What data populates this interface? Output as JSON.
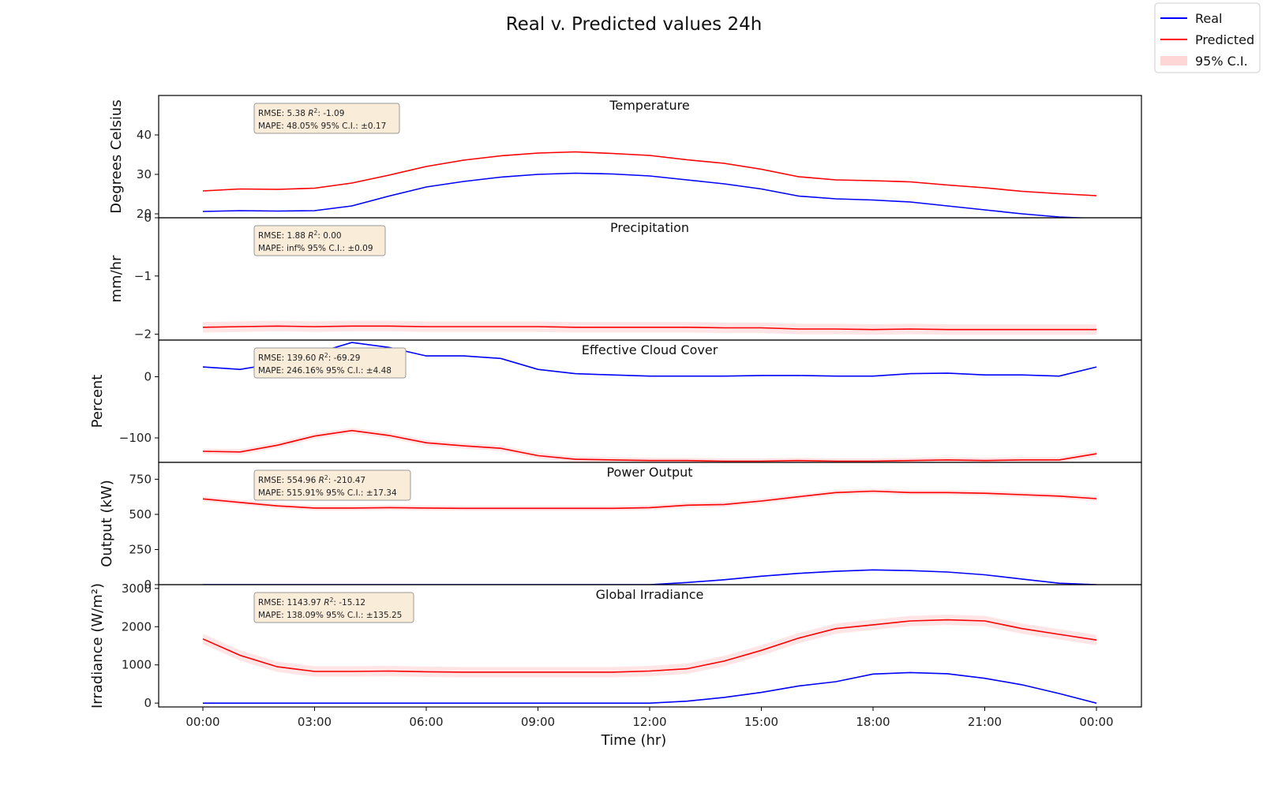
{
  "chart_data": {
    "type": "line",
    "title": "Real v. Predicted values 24h",
    "xlabel": "Time (hr)",
    "x_ticks": [
      "00:00",
      "03:00",
      "06:00",
      "09:00",
      "12:00",
      "15:00",
      "18:00",
      "21:00",
      "00:00"
    ],
    "legend": {
      "placement": "top-right",
      "entries": [
        {
          "label": "Real",
          "color": "#0000ff",
          "kind": "line"
        },
        {
          "label": "Predicted",
          "color": "#ff0000",
          "kind": "line"
        },
        {
          "label": "95% C.I.",
          "color": "#ffd6d6",
          "kind": "patch"
        }
      ]
    },
    "colors": {
      "real": "#0000ff",
      "predicted": "#ff0000",
      "ci": "#ffcccc",
      "stats_box": "#f9ecd9"
    },
    "subplots": [
      {
        "title": "Temperature",
        "ylabel": "Degrees Celsius",
        "ylim": [
          19,
          50
        ],
        "yticks": [
          20,
          30,
          40
        ],
        "stats": {
          "rmse": "RMSE: 5.38",
          "r2_label": "R",
          "r2_value": ": -1.09",
          "mape": "MAPE: 48.05%",
          "ci": "95% C.I.: ±0.17"
        },
        "ci_halfwidth": 0.17,
        "x": [
          0,
          1,
          2,
          3,
          4,
          5,
          6,
          7,
          8,
          9,
          10,
          11,
          12,
          13,
          14,
          15,
          16,
          17,
          18,
          19,
          20,
          21,
          22,
          23,
          24
        ],
        "real": [
          20.6,
          20.8,
          20.7,
          20.8,
          22.0,
          24.5,
          26.8,
          28.2,
          29.3,
          30.0,
          30.3,
          30.1,
          29.6,
          28.6,
          27.6,
          26.3,
          24.5,
          23.8,
          23.5,
          23.0,
          22.0,
          21.0,
          20.0,
          19.2,
          18.8
        ],
        "predicted": [
          25.8,
          26.3,
          26.2,
          26.5,
          27.8,
          29.8,
          32.0,
          33.6,
          34.7,
          35.4,
          35.7,
          35.3,
          34.8,
          33.7,
          32.8,
          31.3,
          29.4,
          28.6,
          28.4,
          28.1,
          27.3,
          26.6,
          25.7,
          25.1,
          24.6
        ]
      },
      {
        "title": "Precipitation",
        "ylabel": "mm/hr",
        "ylim": [
          -2.1,
          0
        ],
        "yticks": [
          0,
          -1,
          -2
        ],
        "stats": {
          "rmse": "RMSE: 1.88",
          "r2_label": "R",
          "r2_value": ": 0.00",
          "mape": "MAPE: inf%",
          "ci": "95% C.I.: ±0.09"
        },
        "ci_halfwidth": 0.09,
        "x": [
          0,
          1,
          2,
          3,
          4,
          5,
          6,
          7,
          8,
          9,
          10,
          11,
          12,
          13,
          14,
          15,
          16,
          17,
          18,
          19,
          20,
          21,
          22,
          23,
          24
        ],
        "real": [],
        "predicted": [
          -1.88,
          -1.87,
          -1.86,
          -1.87,
          -1.86,
          -1.86,
          -1.87,
          -1.87,
          -1.87,
          -1.87,
          -1.88,
          -1.88,
          -1.88,
          -1.88,
          -1.89,
          -1.89,
          -1.91,
          -1.91,
          -1.92,
          -1.91,
          -1.92,
          -1.92,
          -1.92,
          -1.92,
          -1.92
        ]
      },
      {
        "title": "Effective Cloud Cover",
        "ylabel": "Percent",
        "ylim": [
          -140,
          60
        ],
        "yticks": [
          0,
          -100
        ],
        "stats": {
          "rmse": "RMSE: 139.60",
          "r2_label": "R",
          "r2_value": ": -69.29",
          "mape": "MAPE: 246.16%",
          "ci": "95% C.I.: ±4.48"
        },
        "ci_halfwidth": 4.48,
        "x": [
          0,
          1,
          2,
          3,
          4,
          5,
          6,
          7,
          8,
          9,
          10,
          11,
          12,
          13,
          14,
          15,
          16,
          17,
          18,
          19,
          20,
          21,
          22,
          23,
          24
        ],
        "real": [
          16,
          12,
          22,
          38,
          56,
          48,
          34,
          34,
          30,
          12,
          5,
          3,
          1,
          1,
          1,
          2,
          2,
          1,
          1,
          5,
          6,
          3,
          3,
          1,
          16
        ],
        "predicted": [
          -122,
          -123,
          -112,
          -97,
          -88,
          -96,
          -108,
          -113,
          -117,
          -129,
          -135,
          -136,
          -137,
          -137,
          -138,
          -138,
          -137,
          -138,
          -138,
          -137,
          -136,
          -137,
          -136,
          -136,
          -126
        ]
      },
      {
        "title": "Power Output",
        "ylabel": "Output (kW)",
        "ylim": [
          0,
          870
        ],
        "yticks": [
          0,
          250,
          500,
          750
        ],
        "stats": {
          "rmse": "RMSE: 554.96",
          "r2_label": "R",
          "r2_value": ": -210.47",
          "mape": "MAPE: 515.91%",
          "ci": "95% C.I.: ±17.34"
        },
        "ci_halfwidth": 17.34,
        "x": [
          0,
          1,
          2,
          3,
          4,
          5,
          6,
          7,
          8,
          9,
          10,
          11,
          12,
          13,
          14,
          15,
          16,
          17,
          18,
          19,
          20,
          21,
          22,
          23,
          24
        ],
        "real": [
          0,
          0,
          0,
          0,
          0,
          0,
          0,
          0,
          0,
          0,
          0,
          0,
          0,
          15,
          35,
          60,
          80,
          95,
          105,
          100,
          90,
          70,
          40,
          10,
          0
        ],
        "predicted": [
          610,
          585,
          560,
          545,
          545,
          548,
          545,
          543,
          543,
          543,
          543,
          543,
          548,
          565,
          570,
          595,
          625,
          655,
          665,
          655,
          655,
          650,
          640,
          630,
          612
        ]
      },
      {
        "title": "Global Irradiance",
        "ylabel": "Irradiance (W/m²)",
        "ylim": [
          -100,
          3100
        ],
        "yticks": [
          0,
          1000,
          2000,
          3000
        ],
        "stats": {
          "rmse": "RMSE: 1143.97",
          "r2_label": "R",
          "r2_value": ": -15.12",
          "mape": "MAPE: 138.09%",
          "ci": "95% C.I.: ±135.25"
        },
        "ci_halfwidth": 135.25,
        "x": [
          0,
          1,
          2,
          3,
          4,
          5,
          6,
          7,
          8,
          9,
          10,
          11,
          12,
          13,
          14,
          15,
          16,
          17,
          18,
          19,
          20,
          21,
          22,
          23,
          24
        ],
        "real": [
          0,
          0,
          0,
          0,
          0,
          0,
          0,
          0,
          0,
          0,
          0,
          0,
          0,
          50,
          150,
          280,
          450,
          560,
          760,
          800,
          770,
          650,
          480,
          250,
          0
        ],
        "predicted": [
          1680,
          1250,
          950,
          830,
          830,
          840,
          820,
          810,
          810,
          810,
          810,
          810,
          840,
          900,
          1100,
          1380,
          1700,
          1950,
          2050,
          2150,
          2180,
          2150,
          1950,
          1800,
          1650
        ]
      }
    ]
  }
}
